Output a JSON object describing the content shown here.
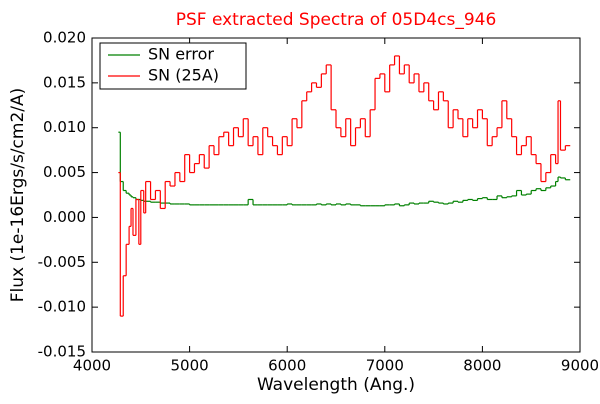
{
  "chart_data": {
    "type": "step",
    "title": "PSF extracted Spectra of 05D4cs_946",
    "x_label": "Wavelength (Ang.)",
    "y_label": "Flux (1e-16Ergs/s/cm2/A)",
    "x": [
      4270,
      4290,
      4320,
      4350,
      4380,
      4400,
      4420,
      4450,
      4480,
      4500,
      4530,
      4550,
      4600,
      4650,
      4700,
      4750,
      4800,
      4850,
      4900,
      4950,
      5000,
      5050,
      5100,
      5150,
      5200,
      5250,
      5300,
      5350,
      5400,
      5450,
      5500,
      5550,
      5600,
      5650,
      5700,
      5750,
      5800,
      5850,
      5900,
      5950,
      6000,
      6050,
      6100,
      6150,
      6200,
      6250,
      6300,
      6350,
      6400,
      6450,
      6500,
      6550,
      6600,
      6650,
      6700,
      6750,
      6800,
      6850,
      6900,
      6950,
      7000,
      7050,
      7100,
      7150,
      7200,
      7250,
      7300,
      7350,
      7400,
      7450,
      7500,
      7550,
      7600,
      7650,
      7700,
      7750,
      7800,
      7850,
      7900,
      7950,
      8000,
      8050,
      8100,
      8150,
      8200,
      8250,
      8300,
      8350,
      8400,
      8450,
      8500,
      8550,
      8600,
      8650,
      8700,
      8750,
      8775,
      8800,
      8850
    ],
    "series": [
      {
        "name": "SN error",
        "color": "#008000",
        "values": [
          0.0095,
          0.004,
          0.003,
          0.0027,
          0.0025,
          0.0023,
          0.0022,
          0.002,
          0.002,
          0.0019,
          0.0018,
          0.0018,
          0.0017,
          0.0017,
          0.0016,
          0.0016,
          0.0015,
          0.0015,
          0.0015,
          0.0015,
          0.0014,
          0.0014,
          0.0014,
          0.0014,
          0.0014,
          0.0014,
          0.0014,
          0.0014,
          0.0014,
          0.0014,
          0.0014,
          0.0014,
          0.002,
          0.0014,
          0.0014,
          0.0014,
          0.0014,
          0.0014,
          0.0014,
          0.0014,
          0.0015,
          0.0014,
          0.0014,
          0.0014,
          0.0014,
          0.0014,
          0.0015,
          0.0014,
          0.0015,
          0.0014,
          0.0015,
          0.0014,
          0.0015,
          0.0014,
          0.0014,
          0.0013,
          0.0013,
          0.0013,
          0.0013,
          0.0013,
          0.0014,
          0.0014,
          0.0015,
          0.0013,
          0.0014,
          0.0016,
          0.0015,
          0.0016,
          0.0016,
          0.0018,
          0.0017,
          0.0016,
          0.0015,
          0.0016,
          0.0018,
          0.0017,
          0.0019,
          0.002,
          0.0019,
          0.0021,
          0.0022,
          0.002,
          0.002,
          0.0024,
          0.0022,
          0.0023,
          0.0024,
          0.003,
          0.0025,
          0.0026,
          0.003,
          0.0032,
          0.003,
          0.0033,
          0.0035,
          0.004,
          0.0045,
          0.0044,
          0.0042
        ]
      },
      {
        "name": "SN (25A)",
        "color": "#ff0000",
        "values": [
          0.005,
          -0.011,
          -0.0065,
          -0.003,
          -0.001,
          0.001,
          -0.002,
          0.002,
          -0.003,
          0.003,
          0.0005,
          0.004,
          0.002,
          0.003,
          0.001,
          0.004,
          0.0035,
          0.005,
          0.004,
          0.007,
          0.005,
          0.006,
          0.007,
          0.0055,
          0.008,
          0.007,
          0.009,
          0.0095,
          0.008,
          0.01,
          0.009,
          0.011,
          0.008,
          0.009,
          0.007,
          0.01,
          0.009,
          0.008,
          0.007,
          0.009,
          0.008,
          0.011,
          0.01,
          0.013,
          0.014,
          0.015,
          0.0145,
          0.016,
          0.017,
          0.012,
          0.01,
          0.009,
          0.011,
          0.008,
          0.01,
          0.011,
          0.009,
          0.012,
          0.0155,
          0.016,
          0.014,
          0.017,
          0.018,
          0.016,
          0.017,
          0.015,
          0.016,
          0.014,
          0.015,
          0.013,
          0.012,
          0.014,
          0.013,
          0.01,
          0.012,
          0.011,
          0.009,
          0.011,
          0.01,
          0.012,
          0.011,
          0.008,
          0.009,
          0.01,
          0.013,
          0.011,
          0.009,
          0.007,
          0.008,
          0.009,
          0.007,
          0.006,
          0.004,
          0.005,
          0.007,
          0.006,
          0.013,
          0.0075,
          0.008
        ]
      }
    ],
    "xlim": [
      4000,
      9000
    ],
    "xticks": [
      4000,
      5000,
      6000,
      7000,
      8000,
      9000
    ],
    "ylim": [
      -0.015,
      0.02
    ],
    "yticks": [
      {
        "value": -0.015,
        "label": "-0.015"
      },
      {
        "value": -0.01,
        "label": "-0.010"
      },
      {
        "value": -0.005,
        "label": "-0.005"
      },
      {
        "value": 0,
        "label": "0.000"
      },
      {
        "value": 0.005,
        "label": "0.005"
      },
      {
        "value": 0.01,
        "label": "0.010"
      },
      {
        "value": 0.015,
        "label": "0.015"
      },
      {
        "value": 0.02,
        "label": "0.020"
      }
    ],
    "title_color": "#ff0000",
    "legend": "upper left",
    "grid": false
  }
}
